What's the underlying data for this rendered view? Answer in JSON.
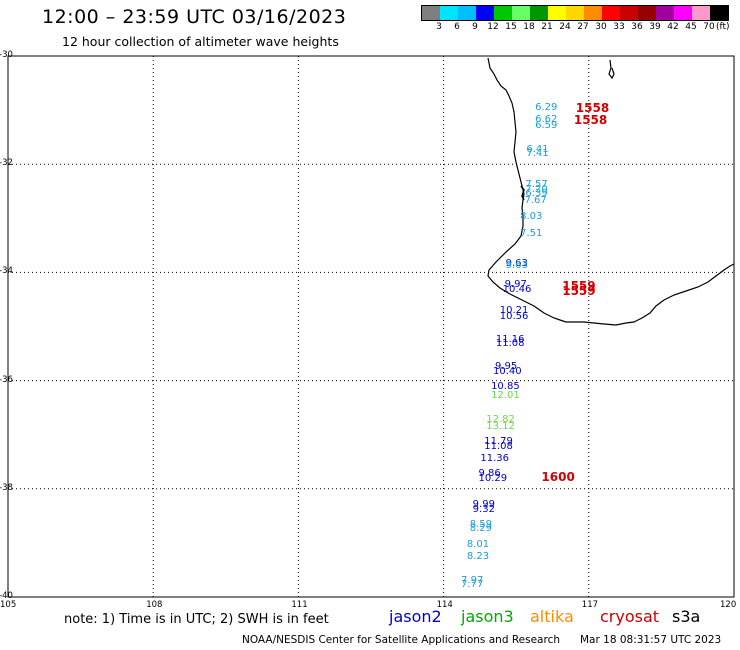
{
  "header": {
    "title": "12:00 – 23:59 UTC 03/16/2023",
    "subtitle": "12 hour collection of altimeter wave heights"
  },
  "legend": {
    "unit": "(ft)",
    "swatches": [
      "#7f7f7f",
      "#00e5ff",
      "#00bfff",
      "#0000ff",
      "#00c800",
      "#66ff66",
      "#009600",
      "#ffff00",
      "#ffd700",
      "#ff8c00",
      "#ff0000",
      "#c80000",
      "#960000",
      "#a000a0",
      "#ff00ff",
      "#ff99cc",
      "#000000"
    ],
    "ticks": [
      "3",
      "6",
      "9",
      "12",
      "15",
      "18",
      "21",
      "24",
      "27",
      "30",
      "33",
      "36",
      "39",
      "42",
      "45",
      "70"
    ]
  },
  "map": {
    "lat_labels": [
      "-30",
      "-32",
      "-34",
      "-36",
      "-38",
      "-40"
    ],
    "lon_labels": [
      "105",
      "108",
      "111",
      "114",
      "117",
      "120"
    ],
    "colors": {
      "jason2": "#0000cc",
      "jason3": "#00aa00",
      "altika": "#ff8c00",
      "cryosat": "#cc0000",
      "s3a": "#000000",
      "light_blue": "#1aa0d8",
      "light_green": "#66dd44",
      "red": "#d40000"
    }
  },
  "observations": [
    {
      "v": "6.29",
      "lat": -30.96,
      "lon": 116.18,
      "c": "light_blue"
    },
    {
      "v": "6.62",
      "lat": -31.19,
      "lon": 116.18,
      "c": "light_blue"
    },
    {
      "v": "6.59",
      "lat": -31.29,
      "lon": 116.18,
      "c": "light_blue"
    },
    {
      "v": "6.41",
      "lat": -31.73,
      "lon": 116.0,
      "c": "light_blue"
    },
    {
      "v": "7.41",
      "lat": -31.82,
      "lon": 116.0,
      "c": "light_blue"
    },
    {
      "v": "7.57",
      "lat": -32.38,
      "lon": 115.98,
      "c": "light_blue"
    },
    {
      "v": "7.20",
      "lat": -32.48,
      "lon": 115.98,
      "c": "light_blue"
    },
    {
      "v": "6.39",
      "lat": -32.56,
      "lon": 115.98,
      "c": "light_blue"
    },
    {
      "v": "7.67",
      "lat": -32.68,
      "lon": 115.96,
      "c": "light_blue"
    },
    {
      "v": "8.03",
      "lat": -32.98,
      "lon": 115.87,
      "c": "light_blue"
    },
    {
      "v": "7.51",
      "lat": -33.29,
      "lon": 115.87,
      "c": "light_blue"
    },
    {
      "v": "9.63",
      "lat": -33.85,
      "lon": 115.57,
      "c": "jason2"
    },
    {
      "v": "9.63",
      "lat": -33.89,
      "lon": 115.57,
      "c": "light_blue"
    },
    {
      "v": "9.97",
      "lat": -34.23,
      "lon": 115.55,
      "c": "jason2"
    },
    {
      "v": "10.46",
      "lat": -34.33,
      "lon": 115.51,
      "c": "jason2"
    },
    {
      "v": "10.21",
      "lat": -34.71,
      "lon": 115.45,
      "c": "jason2"
    },
    {
      "v": "10.56",
      "lat": -34.82,
      "lon": 115.45,
      "c": "jason2"
    },
    {
      "v": "11.16",
      "lat": -35.25,
      "lon": 115.37,
      "c": "jason2"
    },
    {
      "v": "11.08",
      "lat": -35.33,
      "lon": 115.37,
      "c": "jason2"
    },
    {
      "v": "9.95",
      "lat": -35.74,
      "lon": 115.35,
      "c": "jason2"
    },
    {
      "v": "10.40",
      "lat": -35.84,
      "lon": 115.31,
      "c": "jason2"
    },
    {
      "v": "10.85",
      "lat": -36.12,
      "lon": 115.27,
      "c": "jason2"
    },
    {
      "v": "12.01",
      "lat": -36.29,
      "lon": 115.27,
      "c": "light_green"
    },
    {
      "v": "12.82",
      "lat": -36.73,
      "lon": 115.17,
      "c": "light_green"
    },
    {
      "v": "13.12",
      "lat": -36.86,
      "lon": 115.17,
      "c": "light_green"
    },
    {
      "v": "11.79",
      "lat": -37.14,
      "lon": 115.13,
      "c": "jason2"
    },
    {
      "v": "11.08",
      "lat": -37.22,
      "lon": 115.13,
      "c": "jason2"
    },
    {
      "v": "11.36",
      "lat": -37.44,
      "lon": 115.05,
      "c": "jason2"
    },
    {
      "v": "9.86",
      "lat": -37.72,
      "lon": 115.01,
      "c": "jason2"
    },
    {
      "v": "10.29",
      "lat": -37.82,
      "lon": 115.01,
      "c": "jason2"
    },
    {
      "v": "9.99",
      "lat": -38.3,
      "lon": 114.89,
      "c": "jason2"
    },
    {
      "v": "9.32",
      "lat": -38.4,
      "lon": 114.89,
      "c": "jason2"
    },
    {
      "v": "8.59",
      "lat": -38.66,
      "lon": 114.83,
      "c": "light_blue"
    },
    {
      "v": "8.29",
      "lat": -38.75,
      "lon": 114.83,
      "c": "light_blue"
    },
    {
      "v": "8.01",
      "lat": -39.04,
      "lon": 114.77,
      "c": "light_blue"
    },
    {
      "v": "8.23",
      "lat": -39.26,
      "lon": 114.77,
      "c": "light_blue"
    },
    {
      "v": "7.97",
      "lat": -39.71,
      "lon": 114.65,
      "c": "light_blue"
    },
    {
      "v": "7.77",
      "lat": -39.78,
      "lon": 114.65,
      "c": "light_blue"
    }
  ],
  "passes": [
    {
      "t": "1558",
      "lat": -30.96,
      "lon": 117.0
    },
    {
      "t": "1558",
      "lat": -31.19,
      "lon": 116.96
    },
    {
      "t": "1559",
      "lat": -34.25,
      "lon": 116.72
    },
    {
      "t": "1559",
      "lat": -34.34,
      "lon": 116.72
    },
    {
      "t": "1600",
      "lat": -37.79,
      "lon": 116.29
    }
  ],
  "footer": {
    "note": "note:  1) Time is in UTC;  2) SWH is in feet",
    "satellites": [
      {
        "label": "jason2",
        "c": "jason2"
      },
      {
        "label": "jason3",
        "c": "jason3"
      },
      {
        "label": "altika",
        "c": "altika"
      },
      {
        "label": "cryosat",
        "c": "cryosat"
      },
      {
        "label": "s3a",
        "c": "s3a"
      }
    ],
    "credit": "NOAA/NESDIS Center for Satellite Applications and Research",
    "timestamp": "Mar 18 08:31:57 UTC 2023"
  }
}
